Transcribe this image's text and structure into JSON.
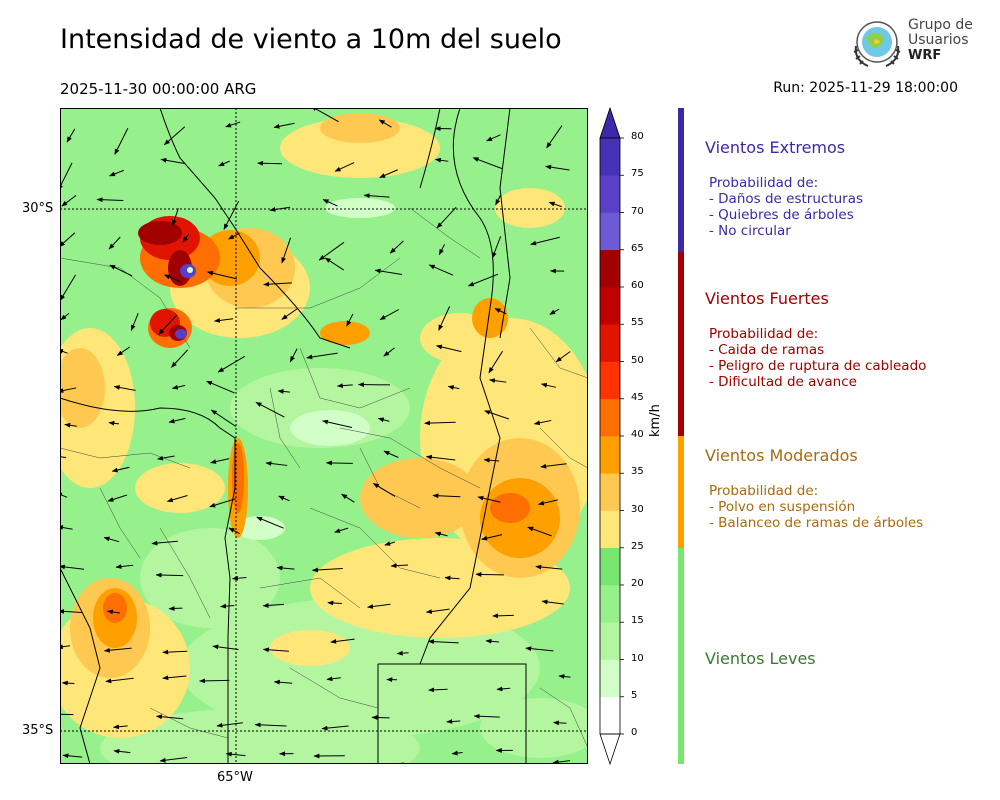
{
  "header": {
    "title": "Intensidad de viento a 10m del suelo",
    "valid_time": "2025-11-30 00:00:00 ARG",
    "run": "Run: 2025-11-29 18:00:00"
  },
  "logo": {
    "line1": "Grupo de",
    "line2": "Usuarios",
    "line3": "WRF"
  },
  "map": {
    "lat_labels": [
      "30°S",
      "35°S"
    ],
    "lon_labels": [
      "65°W"
    ]
  },
  "colorbar": {
    "unit": "km/h",
    "ticks": [
      "0",
      "5",
      "10",
      "15",
      "20",
      "25",
      "30",
      "35",
      "40",
      "45",
      "50",
      "55",
      "60",
      "65",
      "70",
      "75",
      "80"
    ],
    "colors": [
      "#ffffff",
      "#d2ffc8",
      "#b4f5a0",
      "#96f08c",
      "#78e66e",
      "#ffe678",
      "#ffc850",
      "#ffa000",
      "#ff6e00",
      "#ff3200",
      "#e11400",
      "#c00000",
      "#a00000",
      "#6e5ad2",
      "#5a40c8",
      "#4632b4"
    ],
    "extend_min_color": "#ffffff",
    "extend_max_color": "#3c28aa"
  },
  "legend": {
    "categories": [
      {
        "title": "Vientos Extremos",
        "color": "#3c28aa",
        "desc_header": "Probabilidad de:",
        "items": [
          "- Daños de estructuras",
          "- Quiebres de árboles",
          "- No circular"
        ]
      },
      {
        "title": "Vientos Fuertes",
        "color": "#a00000",
        "desc_header": "Probabilidad de:",
        "items": [
          "- Caida de ramas",
          "- Peligro de ruptura de cableado",
          "- Dificultad de avance"
        ]
      },
      {
        "title": "Vientos Moderados",
        "color": "#a86a10",
        "desc_header": "Probabilidad de:",
        "items": [
          "- Polvo en suspensión",
          "- Balanceo de ramas de árboles"
        ]
      },
      {
        "title": "Vientos Leves",
        "color": "#3a7a30",
        "desc_header": "",
        "items": []
      }
    ]
  }
}
